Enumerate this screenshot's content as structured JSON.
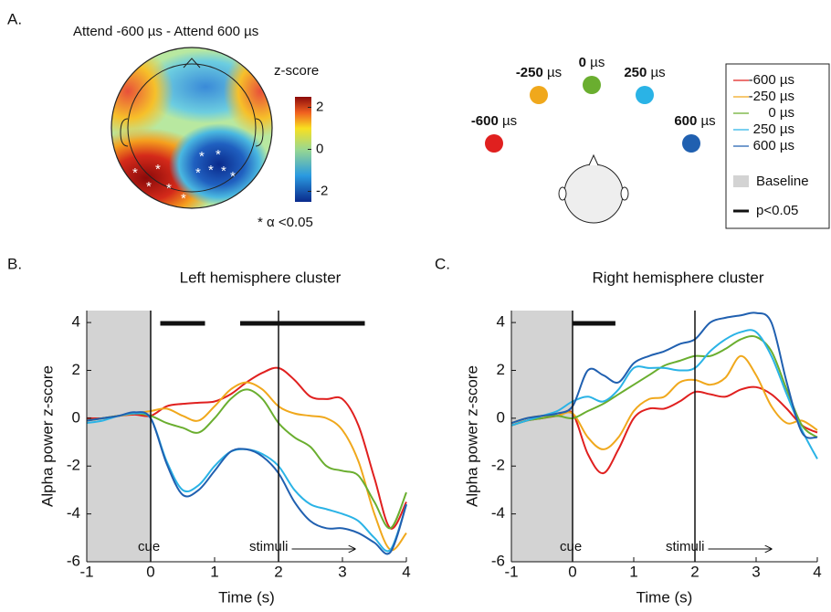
{
  "panel_a": {
    "panel": "A.",
    "title": "Attend -600 µs - Attend 600 µs",
    "colorbar_label": "z-score",
    "clim": [
      -2.5,
      2.5
    ],
    "colorbar_ticks": [
      2,
      0,
      -2
    ],
    "note": "* α <0.05",
    "speakers": [
      {
        "label": "-600",
        "unit": "µs",
        "color": "#e0201f"
      },
      {
        "label": "-250",
        "unit": "µs",
        "color": "#f0a81c"
      },
      {
        "label": "0",
        "unit": "µs",
        "color": "#6aae2f"
      },
      {
        "label": "250",
        "unit": "µs",
        "color": "#2ab3e6"
      },
      {
        "label": "600",
        "unit": "µs",
        "color": "#2060b0"
      }
    ],
    "legend_baseline": "Baseline",
    "legend_significance": "p<0.05"
  },
  "chart_data": [
    {
      "type": "line",
      "panel": "B.",
      "title": "Left hemisphere cluster",
      "x_label": "Time (s)",
      "y_label": "Alpha power z-score",
      "x": [
        -1,
        -0.75,
        -0.5,
        -0.25,
        0,
        0.25,
        0.5,
        0.75,
        1,
        1.25,
        1.5,
        1.75,
        2,
        2.25,
        2.5,
        2.75,
        3,
        3.25,
        3.5,
        3.75,
        4
      ],
      "xlim": [
        -1,
        4
      ],
      "ylim": [
        -6,
        4.5
      ],
      "xticks": [
        -1,
        0,
        1,
        2,
        3,
        4
      ],
      "yticks": [
        -6,
        -4,
        -2,
        0,
        2,
        4
      ],
      "baseline": [
        -1,
        0
      ],
      "significance": [
        [
          0.15,
          0.85
        ],
        [
          1.4,
          3.35
        ]
      ],
      "events": [
        {
          "label": "cue",
          "time": 0
        },
        {
          "label": "stimuli",
          "time": 2
        }
      ],
      "series": [
        {
          "name": "-600 µs",
          "color": "#e0201f",
          "values": [
            0,
            0,
            0.1,
            0.15,
            0.1,
            0.5,
            0.6,
            0.65,
            0.7,
            1.0,
            1.5,
            1.9,
            2.1,
            1.6,
            0.9,
            0.8,
            0.8,
            -0.3,
            -2.5,
            -4.6,
            -3.5
          ]
        },
        {
          "name": "-250 µs",
          "color": "#f0a81c",
          "values": [
            -0.1,
            0,
            0.1,
            0.2,
            0.3,
            0.4,
            0.1,
            -0.1,
            0.5,
            1.2,
            1.5,
            1.2,
            0.5,
            0.2,
            0.1,
            0,
            -0.5,
            -1.8,
            -4,
            -5.5,
            -4.8
          ]
        },
        {
          "name": "0 µs",
          "color": "#6aae2f",
          "values": [
            -0.1,
            0,
            0.1,
            0.2,
            0.1,
            -0.2,
            -0.4,
            -0.6,
            0,
            0.8,
            1.2,
            0.8,
            -0.2,
            -0.8,
            -1.2,
            -2,
            -2.2,
            -2.4,
            -3.5,
            -4.6,
            -3.1
          ]
        },
        {
          "name": "250 µs",
          "color": "#2ab3e6",
          "values": [
            -0.2,
            -0.1,
            0.1,
            0.2,
            0,
            -1.8,
            -3,
            -2.8,
            -2,
            -1.4,
            -1.3,
            -1.5,
            -2,
            -3,
            -3.6,
            -3.8,
            -4,
            -4.3,
            -5,
            -5.5,
            -3.6
          ]
        },
        {
          "name": "600 µs",
          "color": "#2060b0",
          "values": [
            -0.1,
            0,
            0.1,
            0.25,
            0,
            -1.9,
            -3.2,
            -3,
            -2.2,
            -1.4,
            -1.3,
            -1.6,
            -2.3,
            -3.5,
            -4.3,
            -4.6,
            -4.6,
            -4.8,
            -5.2,
            -5.6,
            -3.6
          ]
        }
      ]
    },
    {
      "type": "line",
      "panel": "C.",
      "title": "Right hemisphere cluster",
      "x_label": "Time (s)",
      "y_label": "Alpha power z-score",
      "x": [
        -1,
        -0.75,
        -0.5,
        -0.25,
        0,
        0.25,
        0.5,
        0.75,
        1,
        1.25,
        1.5,
        1.75,
        2,
        2.25,
        2.5,
        2.75,
        3,
        3.25,
        3.5,
        3.75,
        4
      ],
      "xlim": [
        -1,
        4
      ],
      "ylim": [
        -6,
        4.5
      ],
      "xticks": [
        -1,
        0,
        1,
        2,
        3,
        4
      ],
      "yticks": [
        -6,
        -4,
        -2,
        0,
        2,
        4
      ],
      "baseline": [
        -1,
        0
      ],
      "significance": [
        [
          0,
          0.7
        ]
      ],
      "events": [
        {
          "label": "cue",
          "time": 0
        },
        {
          "label": "stimuli",
          "time": 2
        }
      ],
      "series": [
        {
          "name": "-600 µs",
          "color": "#e0201f",
          "values": [
            -0.3,
            -0.1,
            0,
            0.1,
            0.2,
            -1.5,
            -2.3,
            -1.3,
            0,
            0.4,
            0.4,
            0.7,
            1.1,
            1,
            0.9,
            1.2,
            1.3,
            1.0,
            0.4,
            -0.3,
            -0.6
          ]
        },
        {
          "name": "-250 µs",
          "color": "#f0a81c",
          "values": [
            -0.2,
            0,
            0.1,
            0.1,
            0.2,
            -0.8,
            -1.3,
            -0.8,
            0.3,
            0.8,
            0.9,
            1.5,
            1.6,
            1.4,
            1.7,
            2.6,
            1.8,
            0.5,
            -0.2,
            -0.1,
            -0.5
          ]
        },
        {
          "name": "0 µs",
          "color": "#6aae2f",
          "values": [
            -0.3,
            -0.1,
            0,
            0.1,
            0,
            0.3,
            0.6,
            1,
            1.4,
            1.8,
            2.2,
            2.4,
            2.6,
            2.6,
            2.9,
            3.3,
            3.4,
            2.8,
            1.2,
            -0.3,
            -0.8
          ]
        },
        {
          "name": "250 µs",
          "color": "#2ab3e6",
          "values": [
            -0.3,
            -0.1,
            0.1,
            0.3,
            0.7,
            0.9,
            0.7,
            1.2,
            2.1,
            2.1,
            2.1,
            2.0,
            2.1,
            2.8,
            3.3,
            3.6,
            3.6,
            2.6,
            1.0,
            -0.5,
            -1.7
          ]
        },
        {
          "name": "600 µs",
          "color": "#2060b0",
          "values": [
            -0.2,
            0,
            0.1,
            0.2,
            0.5,
            2,
            1.8,
            1.5,
            2.3,
            2.6,
            2.8,
            3.1,
            3.3,
            4.0,
            4.2,
            4.3,
            4.4,
            4.0,
            1.5,
            -0.6,
            -0.8
          ]
        }
      ]
    }
  ]
}
